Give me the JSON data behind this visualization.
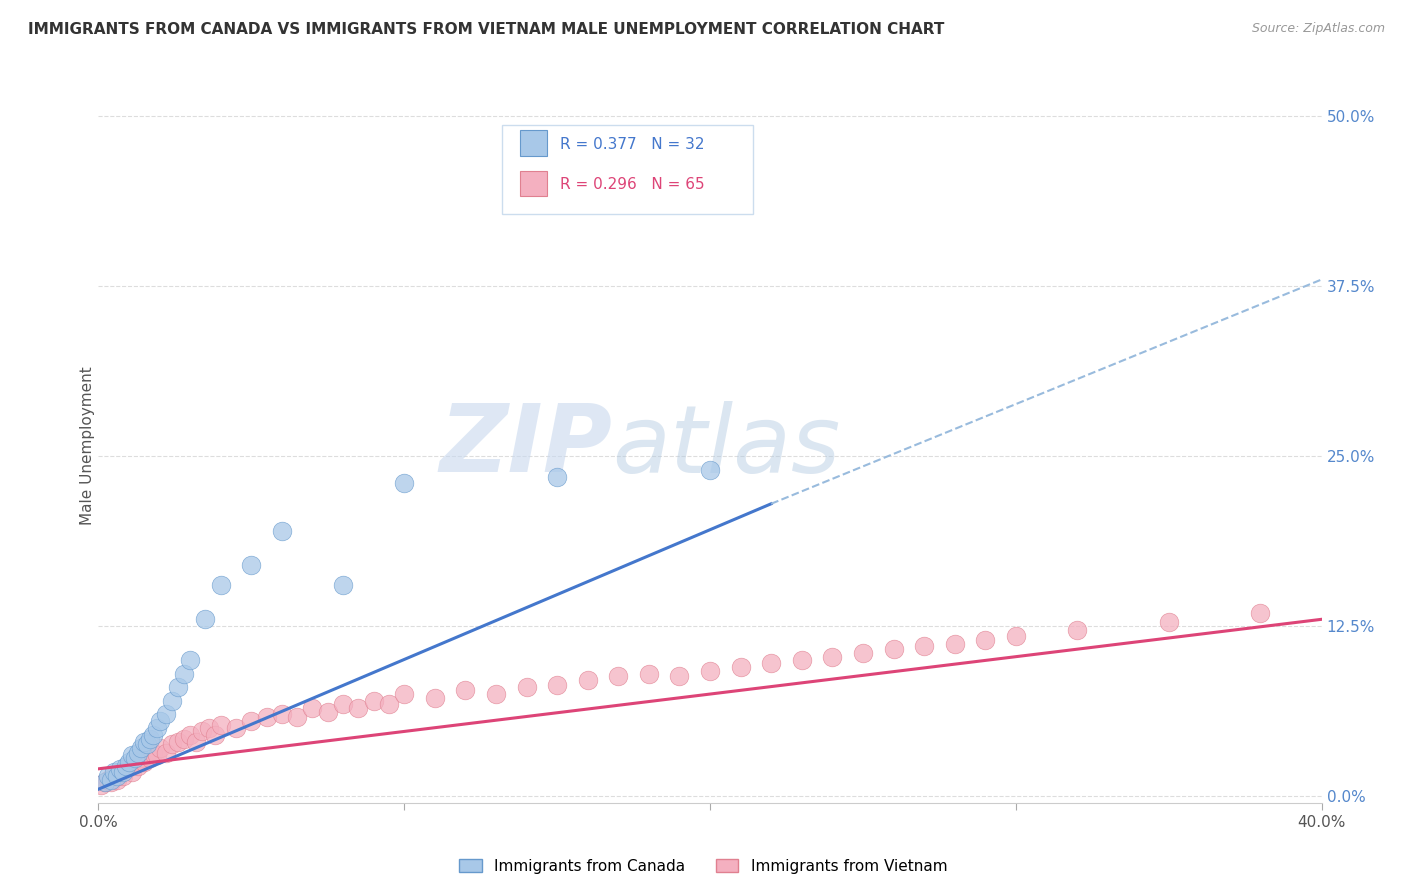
{
  "title": "IMMIGRANTS FROM CANADA VS IMMIGRANTS FROM VIETNAM MALE UNEMPLOYMENT CORRELATION CHART",
  "source": "Source: ZipAtlas.com",
  "ylabel": "Male Unemployment",
  "ytick_labels": [
    "0.0%",
    "12.5%",
    "25.0%",
    "37.5%",
    "50.0%"
  ],
  "ytick_values": [
    0.0,
    0.125,
    0.25,
    0.375,
    0.5
  ],
  "xlim": [
    0.0,
    0.4
  ],
  "ylim": [
    -0.005,
    0.52
  ],
  "canada_color": "#a8c8e8",
  "canada_edge_color": "#6699cc",
  "vietnam_color": "#f4b0c0",
  "vietnam_edge_color": "#e08090",
  "trendline_canada_color": "#4477cc",
  "trendline_vietnam_color": "#dd4477",
  "dashed_line_color": "#99bbdd",
  "R_canada": 0.377,
  "N_canada": 32,
  "R_vietnam": 0.296,
  "N_vietnam": 65,
  "watermark_zip": "ZIP",
  "watermark_atlas": "atlas",
  "background_color": "#ffffff",
  "title_fontsize": 11,
  "canada_x": [
    0.002,
    0.003,
    0.004,
    0.005,
    0.006,
    0.007,
    0.008,
    0.009,
    0.01,
    0.011,
    0.012,
    0.013,
    0.014,
    0.015,
    0.016,
    0.017,
    0.018,
    0.019,
    0.02,
    0.022,
    0.024,
    0.026,
    0.028,
    0.03,
    0.035,
    0.04,
    0.05,
    0.06,
    0.08,
    0.1,
    0.15,
    0.2
  ],
  "canada_y": [
    0.01,
    0.015,
    0.012,
    0.018,
    0.015,
    0.02,
    0.018,
    0.022,
    0.025,
    0.03,
    0.028,
    0.032,
    0.035,
    0.04,
    0.038,
    0.042,
    0.045,
    0.05,
    0.055,
    0.06,
    0.07,
    0.08,
    0.09,
    0.1,
    0.13,
    0.155,
    0.17,
    0.195,
    0.155,
    0.23,
    0.235,
    0.24
  ],
  "vietnam_x": [
    0.001,
    0.002,
    0.003,
    0.004,
    0.005,
    0.006,
    0.007,
    0.008,
    0.009,
    0.01,
    0.011,
    0.012,
    0.013,
    0.014,
    0.015,
    0.016,
    0.017,
    0.018,
    0.019,
    0.02,
    0.022,
    0.024,
    0.026,
    0.028,
    0.03,
    0.032,
    0.034,
    0.036,
    0.038,
    0.04,
    0.045,
    0.05,
    0.055,
    0.06,
    0.065,
    0.07,
    0.075,
    0.08,
    0.085,
    0.09,
    0.095,
    0.1,
    0.11,
    0.12,
    0.13,
    0.14,
    0.15,
    0.16,
    0.17,
    0.18,
    0.19,
    0.2,
    0.21,
    0.22,
    0.23,
    0.24,
    0.25,
    0.26,
    0.27,
    0.28,
    0.29,
    0.3,
    0.32,
    0.35,
    0.38
  ],
  "vietnam_y": [
    0.008,
    0.01,
    0.012,
    0.01,
    0.015,
    0.012,
    0.018,
    0.015,
    0.02,
    0.022,
    0.018,
    0.025,
    0.022,
    0.028,
    0.025,
    0.03,
    0.028,
    0.032,
    0.03,
    0.035,
    0.032,
    0.038,
    0.04,
    0.042,
    0.045,
    0.04,
    0.048,
    0.05,
    0.045,
    0.052,
    0.05,
    0.055,
    0.058,
    0.06,
    0.058,
    0.065,
    0.062,
    0.068,
    0.065,
    0.07,
    0.068,
    0.075,
    0.072,
    0.078,
    0.075,
    0.08,
    0.082,
    0.085,
    0.088,
    0.09,
    0.088,
    0.092,
    0.095,
    0.098,
    0.1,
    0.102,
    0.105,
    0.108,
    0.11,
    0.112,
    0.115,
    0.118,
    0.122,
    0.128,
    0.135
  ],
  "canada_trend_x_start": 0.0,
  "canada_trend_x_solid_end": 0.22,
  "canada_trend_x_dashed_end": 0.4,
  "canada_trend_y_start": 0.005,
  "canada_trend_y_solid_end": 0.215,
  "canada_trend_y_dashed_end": 0.38,
  "vietnam_trend_x_start": 0.0,
  "vietnam_trend_x_end": 0.4,
  "vietnam_trend_y_start": 0.02,
  "vietnam_trend_y_end": 0.13
}
